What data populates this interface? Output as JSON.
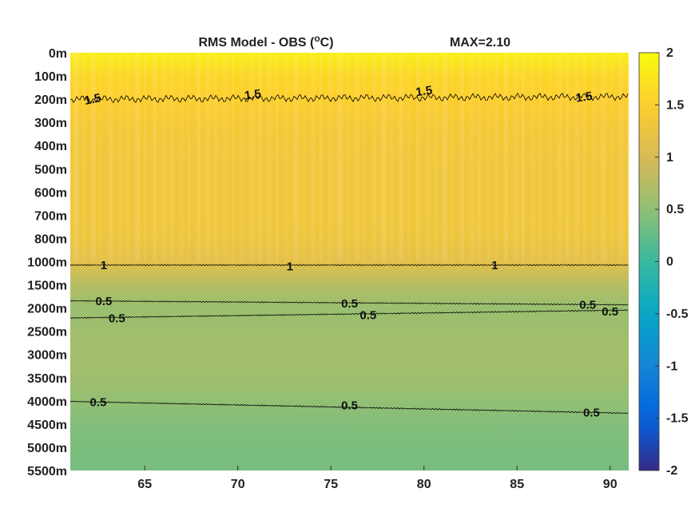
{
  "chart_data": {
    "type": "heatmap",
    "title": "RMS Model - OBS (°C)",
    "title_main": "RMS Model - OBS (",
    "title_sup": "o",
    "title_end": "C)",
    "annotation": "MAX=2.10",
    "x": {
      "ticks": [
        65,
        70,
        75,
        80,
        85,
        90
      ],
      "range": [
        61,
        91
      ]
    },
    "y": {
      "ticks": [
        "0m",
        "100m",
        "200m",
        "300m",
        "400m",
        "500m",
        "600m",
        "700m",
        "800m",
        "1000m",
        "1500m",
        "2000m",
        "2500m",
        "3000m",
        "3500m",
        "4000m",
        "4500m",
        "5000m",
        "5500m"
      ]
    },
    "colorbar": {
      "ticks": [
        "2",
        "1.5",
        "1",
        "0.5",
        "0",
        "-0.5",
        "-1",
        "-1.5",
        "-2"
      ],
      "range": [
        -2,
        2
      ],
      "colormap": "parula"
    },
    "field": [
      {
        "depth": "0m",
        "value": 1.85
      },
      {
        "depth": "100m",
        "value": 1.6
      },
      {
        "depth": "200m",
        "value": 1.5
      },
      {
        "depth": "300m",
        "value": 1.4
      },
      {
        "depth": "400m",
        "value": 1.35
      },
      {
        "depth": "500m",
        "value": 1.33
      },
      {
        "depth": "600m",
        "value": 1.33
      },
      {
        "depth": "700m",
        "value": 1.33
      },
      {
        "depth": "800m",
        "value": 1.3
      },
      {
        "depth": "1000m",
        "value": 1.15
      },
      {
        "depth": "1500m",
        "value": 0.75
      },
      {
        "depth": "2000m",
        "value": 0.55
      },
      {
        "depth": "2500m",
        "value": 0.6
      },
      {
        "depth": "3000m",
        "value": 0.62
      },
      {
        "depth": "3500m",
        "value": 0.6
      },
      {
        "depth": "4000m",
        "value": 0.5
      },
      {
        "depth": "4500m",
        "value": 0.42
      },
      {
        "depth": "5000m",
        "value": 0.38
      },
      {
        "depth": "5500m",
        "value": 0.35
      }
    ],
    "contours": [
      {
        "level": "1.5",
        "depth_index": 2.0,
        "labels": [
          [
            62.2,
            2.0
          ],
          [
            70.8,
            1.8
          ],
          [
            80.0,
            1.65
          ],
          [
            88.6,
            1.9
          ]
        ]
      },
      {
        "level": "1",
        "depth_index": 9.15,
        "labels": [
          [
            62.8,
            9.15
          ],
          [
            72.8,
            9.2
          ],
          [
            83.8,
            9.15
          ]
        ]
      },
      {
        "level": "0.5",
        "depth_index": 10.7,
        "labels": [
          [
            62.8,
            10.7
          ],
          [
            76.0,
            10.8
          ],
          [
            88.8,
            10.85
          ]
        ]
      },
      {
        "level": "0.5",
        "depth_index": 11.4,
        "labels": [
          [
            63.5,
            11.45
          ],
          [
            77.0,
            11.3
          ],
          [
            90.0,
            11.15
          ]
        ]
      },
      {
        "level": "0.5",
        "depth_index": 15.05,
        "labels": [
          [
            62.5,
            15.05
          ],
          [
            76.0,
            15.2
          ],
          [
            89.0,
            15.5
          ]
        ]
      }
    ]
  }
}
